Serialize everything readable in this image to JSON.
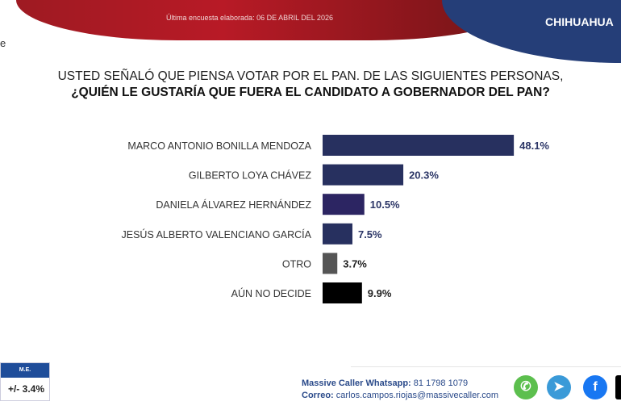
{
  "header": {
    "date_text": "Última encuesta elaborada: 06 DE ABRIL DEL 2026",
    "state": "CHIHUAHUA",
    "edge_text": "e"
  },
  "chart_data": {
    "type": "bar",
    "orientation": "horizontal",
    "title_line1": "USTED SEÑALÓ QUE PIENSA VOTAR POR EL PAN. DE LAS SIGUIENTES PERSONAS,",
    "title_line2": "¿QUIÉN LE GUSTARÍA QUE FUERA EL CANDIDATO A GOBERNADOR DEL PAN?",
    "categories": [
      "MARCO ANTONIO BONILLA MENDOZA",
      "GILBERTO LOYA CHÁVEZ",
      "DANIELA ÁLVAREZ HERNÁNDEZ",
      "JESÚS ALBERTO VALENCIANO GARCÍA",
      "OTRO",
      "AÚN NO DECIDE"
    ],
    "values": [
      48.1,
      20.3,
      10.5,
      7.5,
      3.7,
      9.9
    ],
    "labels": [
      "48.1%",
      "20.3%",
      "10.5%",
      "7.5%",
      "3.7%",
      "9.9%"
    ],
    "colors": [
      "#27305f",
      "#27305f",
      "#2c2562",
      "#27305f",
      "#555555",
      "#000000"
    ],
    "unit": "%"
  },
  "margin": {
    "label": "M.E.",
    "value": "+/- 3.4%"
  },
  "footer": {
    "whatsapp_label": "Massive Caller Whatsapp:",
    "whatsapp": "81 1798 1079",
    "email_label": "Correo:",
    "email": "carlos.campos.riojas@massivecaller.com",
    "icons": [
      "whatsapp-icon",
      "telegram-icon",
      "facebook-icon",
      "x-icon"
    ]
  }
}
